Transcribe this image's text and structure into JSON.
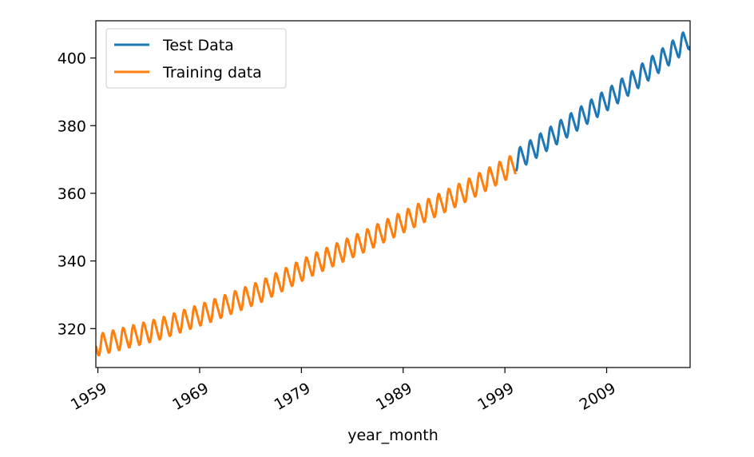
{
  "chart_data": {
    "type": "line",
    "title": "",
    "xlabel": "year_month",
    "ylabel": "",
    "xlim": [
      1958.8,
      2017.2
    ],
    "ylim": [
      308.5,
      411
    ],
    "x_ticks": [
      1959,
      1969,
      1979,
      1989,
      1999,
      2009
    ],
    "x_tick_labels": [
      "1959",
      "1969",
      "1979",
      "1989",
      "1999",
      "2009"
    ],
    "y_ticks": [
      320,
      340,
      360,
      380,
      400
    ],
    "y_tick_labels": [
      "320",
      "340",
      "360",
      "380",
      "400"
    ],
    "grid": false,
    "legend_position": "top-left",
    "seasonal_amplitude": 3,
    "series": [
      {
        "name": "Test Data",
        "color": "#1f77b4",
        "x_range": [
          2000.1,
          2017.2
        ],
        "trend": [
          [
            2000,
            369.5
          ],
          [
            2005,
            379.5
          ],
          [
            2010,
            389.6
          ],
          [
            2015,
            400.8
          ],
          [
            2017.2,
            406.0
          ]
        ]
      },
      {
        "name": "Training data",
        "color": "#ff7f0e",
        "x_range": [
          1958.8,
          2000.1
        ],
        "trend": [
          [
            1958.8,
            315.0
          ],
          [
            1965,
            319.8
          ],
          [
            1970,
            325.0
          ],
          [
            1975,
            330.9
          ],
          [
            1980,
            338.7
          ],
          [
            1985,
            345.5
          ],
          [
            1990,
            353.0
          ],
          [
            1995,
            360.4
          ],
          [
            2000.1,
            368.8
          ]
        ]
      }
    ]
  }
}
